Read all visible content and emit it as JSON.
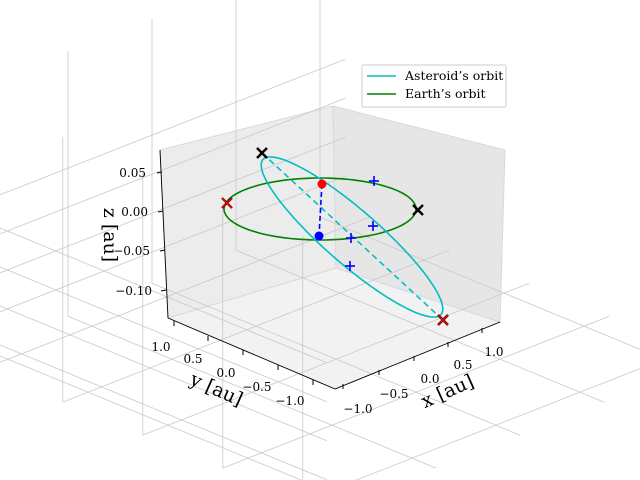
{
  "chart_data": {
    "type": "line",
    "projection": "3d",
    "grid": true,
    "legend_placement": "top-right",
    "xlabel": "x [au]",
    "ylabel": "y [au]",
    "zlabel": "z [au]",
    "xlim": [
      -1.15,
      1.15
    ],
    "ylim": [
      -1.15,
      1.15
    ],
    "zlim": [
      -0.14,
      0.07
    ],
    "x_ticks": [
      "−1.0",
      "−0.5",
      "0.0",
      "0.5",
      "1.0"
    ],
    "y_ticks": [
      "1.0",
      "0.5",
      "0.0",
      "−0.5",
      "−1.0"
    ],
    "z_ticks": [
      "0.05",
      "0.00",
      "−0.05",
      "−0.10"
    ],
    "legend": [
      "Asteroid’s orbit",
      "Earth’s orbit"
    ],
    "colors": {
      "asteroid_orbit": "#00bfbf",
      "earth_orbit": "#008000",
      "red_point": "#ff0000",
      "blue_point": "#0000ff",
      "black_markers": "#000000",
      "plus_markers": "#0000ff"
    },
    "series": [
      {
        "name": "Asteroid’s orbit",
        "kind": "ellipse",
        "center": [
          0.1,
          0.0,
          -0.015
        ],
        "semi_axes": [
          1.18,
          0.28
        ],
        "axis1": [
          0.707,
          -0.707,
          -0.087
        ],
        "axis2": [
          0.707,
          0.707,
          0.0
        ],
        "line_of_apsides": true
      },
      {
        "name": "Earth’s orbit",
        "kind": "circle",
        "center": [
          0.0,
          0.0,
          0.0
        ],
        "radius": 1.0
      }
    ],
    "points": [
      {
        "label": "red-point",
        "xyz": [
          -0.55,
          -0.55,
          0.03
        ]
      },
      {
        "label": "blue-point",
        "xyz": [
          -0.1,
          0.22,
          -0.028
        ]
      }
    ],
    "x_markers": [
      {
        "xyz": [
          0.0,
          1.0,
          0.0
        ],
        "color": "red"
      },
      {
        "xyz": [
          -0.52,
          0.92,
          0.06
        ],
        "color": "black"
      },
      {
        "xyz": [
          0.0,
          -1.0,
          0.0
        ],
        "color": "black"
      },
      {
        "xyz": [
          0.72,
          -0.72,
          -0.12
        ],
        "color": "black"
      },
      {
        "xyz": [
          0.72,
          -0.72,
          -0.12
        ],
        "color": "red"
      }
    ],
    "plus_markers": [
      {
        "xyz": [
          -0.42,
          -0.72,
          0.03
        ]
      },
      {
        "xyz": [
          0.0,
          -0.5,
          -0.018
        ]
      },
      {
        "xyz": [
          0.18,
          -0.05,
          -0.035
        ]
      },
      {
        "xyz": [
          0.48,
          -0.12,
          -0.06
        ]
      }
    ]
  }
}
